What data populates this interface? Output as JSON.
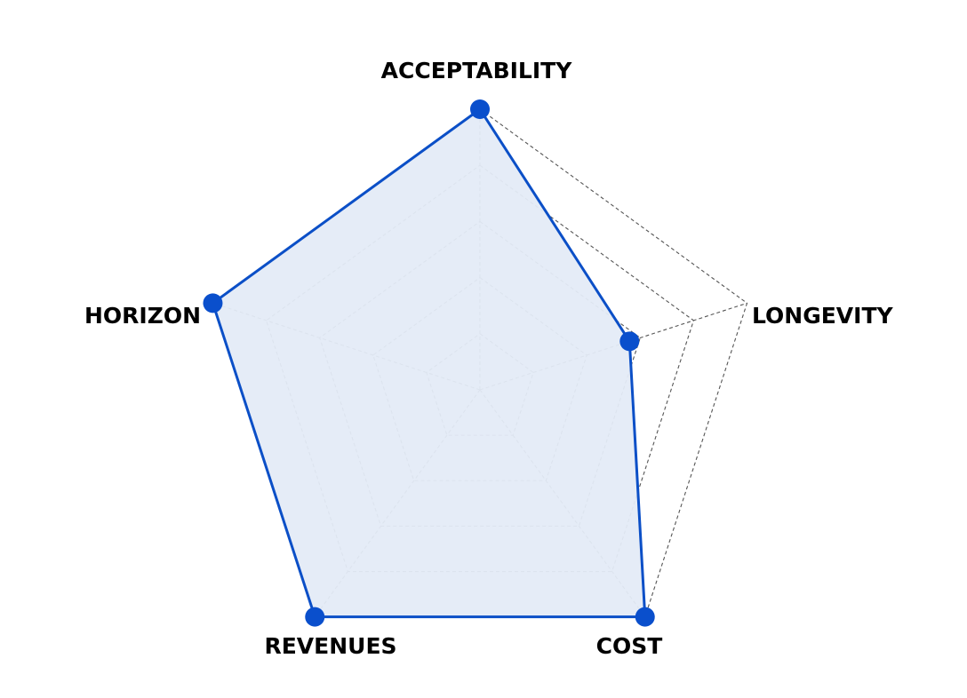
{
  "chart_data": {
    "type": "radar",
    "categories": [
      "ACCEPTABILITY",
      "LONGEVITY",
      "COST",
      "REVENUES",
      "HORIZON"
    ],
    "series": [
      {
        "values": [
          1.0,
          0.56,
          1.0,
          1.0,
          1.0
        ]
      }
    ],
    "range": [
      0,
      1
    ],
    "grid_levels": 5,
    "grid": true,
    "legend": "none"
  },
  "colors": {
    "series_line": "#0b4fc7",
    "series_fill": "#e4ebf7",
    "series_marker": "#0a4fcc",
    "grid": "#555555",
    "label": "#000000"
  }
}
